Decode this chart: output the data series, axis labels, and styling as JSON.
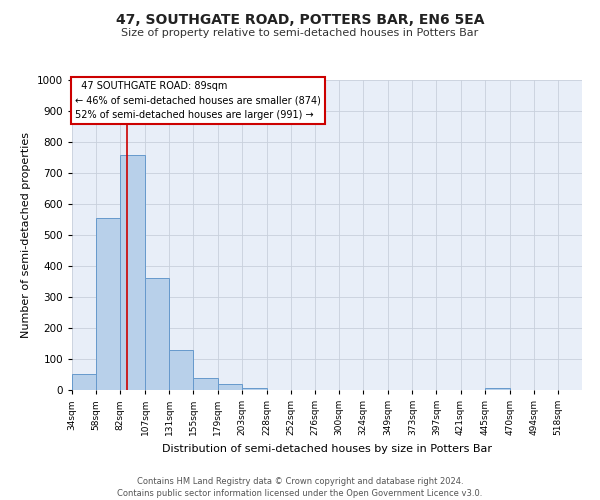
{
  "title": "47, SOUTHGATE ROAD, POTTERS BAR, EN6 5EA",
  "subtitle": "Size of property relative to semi-detached houses in Potters Bar",
  "xlabel": "Distribution of semi-detached houses by size in Potters Bar",
  "ylabel": "Number of semi-detached properties",
  "bin_labels": [
    "34sqm",
    "58sqm",
    "82sqm",
    "107sqm",
    "131sqm",
    "155sqm",
    "179sqm",
    "203sqm",
    "228sqm",
    "252sqm",
    "276sqm",
    "300sqm",
    "324sqm",
    "349sqm",
    "373sqm",
    "397sqm",
    "421sqm",
    "445sqm",
    "470sqm",
    "494sqm",
    "518sqm"
  ],
  "bin_edges": [
    34,
    58,
    82,
    107,
    131,
    155,
    179,
    203,
    228,
    252,
    276,
    300,
    324,
    349,
    373,
    397,
    421,
    445,
    470,
    494,
    518
  ],
  "bar_heights": [
    52,
    554,
    758,
    360,
    130,
    40,
    18,
    7,
    0,
    0,
    0,
    0,
    0,
    0,
    0,
    0,
    0,
    7,
    0,
    0,
    0
  ],
  "bar_color": "#b8d0ea",
  "bar_edge_color": "#6699cc",
  "property_line_x": 89,
  "property_line_color": "#cc0000",
  "annotation_title": "47 SOUTHGATE ROAD: 89sqm",
  "annotation_line1": "← 46% of semi-detached houses are smaller (874)",
  "annotation_line2": "52% of semi-detached houses are larger (991) →",
  "annotation_box_facecolor": "#ffffff",
  "annotation_box_edgecolor": "#cc0000",
  "ylim": [
    0,
    1000
  ],
  "yticks": [
    0,
    100,
    200,
    300,
    400,
    500,
    600,
    700,
    800,
    900,
    1000
  ],
  "footer_line1": "Contains HM Land Registry data © Crown copyright and database right 2024.",
  "footer_line2": "Contains public sector information licensed under the Open Government Licence v3.0.",
  "plot_bg_color": "#e8eef8",
  "fig_bg_color": "#ffffff",
  "grid_color": "#c8d0dc"
}
